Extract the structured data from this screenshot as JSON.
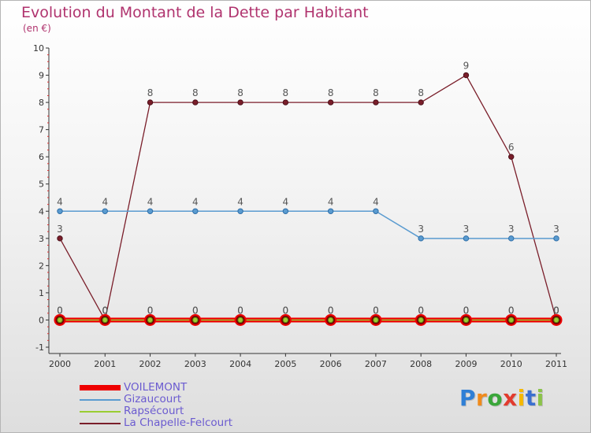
{
  "chart_data": {
    "type": "line",
    "title": "Evolution du Montant de la Dette par Habitant",
    "subtitle": "(en €)",
    "xlabel": "",
    "ylabel": "",
    "categories": [
      "2000",
      "2001",
      "2002",
      "2003",
      "2004",
      "2005",
      "2006",
      "2007",
      "2008",
      "2009",
      "2010",
      "2011"
    ],
    "ylim": [
      -1,
      10
    ],
    "yticks": [
      -1,
      0,
      1,
      2,
      3,
      4,
      5,
      6,
      7,
      8,
      9,
      10
    ],
    "series": [
      {
        "name": "VOILEMONT",
        "color": "#ee0000",
        "values": [
          0,
          0,
          0,
          0,
          0,
          0,
          0,
          0,
          0,
          0,
          0,
          0
        ]
      },
      {
        "name": "Gizaucourt",
        "color": "#5a9bd0",
        "values": [
          4,
          4,
          4,
          4,
          4,
          4,
          4,
          4,
          3,
          3,
          3,
          3
        ]
      },
      {
        "name": "Rapsécourt",
        "color": "#9acd32",
        "values": [
          0,
          0,
          0,
          0,
          0,
          0,
          0,
          0,
          0,
          0,
          0,
          0
        ]
      },
      {
        "name": "La Chapelle-Felcourt",
        "color": "#7a1e2a",
        "values": [
          3,
          0,
          8,
          8,
          8,
          8,
          8,
          8,
          8,
          9,
          6,
          0
        ]
      }
    ],
    "legend_position": "bottom-left"
  },
  "brand": {
    "letters": [
      "P",
      "r",
      "o",
      "x",
      "i",
      "t",
      "i"
    ],
    "colors": [
      "#2f7fd6",
      "#f08a1c",
      "#3aa63a",
      "#e23b2e",
      "#f5b800",
      "#3a6fd0",
      "#8bc34a"
    ]
  }
}
